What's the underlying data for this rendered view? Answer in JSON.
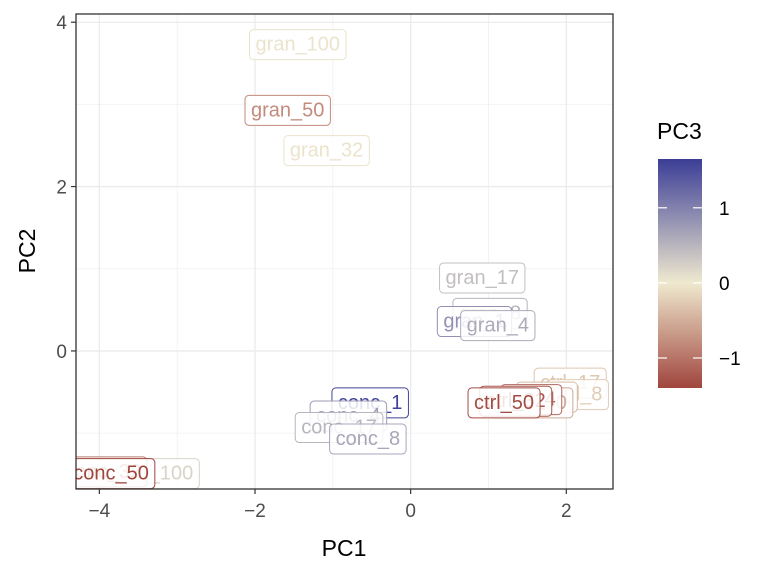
{
  "chart_data": {
    "type": "scatter",
    "title": "",
    "xlabel": "PC1",
    "ylabel": "PC2",
    "xlim": [
      -4.3,
      2.6
    ],
    "ylim": [
      -1.68,
      4.1
    ],
    "xticks": [
      -4,
      -2,
      0,
      2
    ],
    "yticks": [
      0,
      2,
      4
    ],
    "grid": true,
    "legend": {
      "title": "PC3",
      "position": "right",
      "range": [
        -1.4,
        1.65
      ],
      "ticks": [
        -1,
        0,
        1
      ],
      "colors": [
        "#a0453d",
        "#efe9cf",
        "#3b3d96"
      ]
    },
    "points": [
      {
        "label": "gran_100",
        "x": -1.45,
        "y": 3.74,
        "pc3": 0.05
      },
      {
        "label": "gran_50",
        "x": -1.58,
        "y": 2.94,
        "pc3": -0.8
      },
      {
        "label": "gran_32",
        "x": -1.08,
        "y": 2.45,
        "pc3": -0.05
      },
      {
        "label": "gran_17",
        "x": 0.92,
        "y": 0.9,
        "pc3": 0.4
      },
      {
        "label": "gran_8",
        "x": 1.02,
        "y": 0.47,
        "pc3": 0.5
      },
      {
        "label": "gran_1",
        "x": 0.82,
        "y": 0.37,
        "pc3": 0.85
      },
      {
        "label": "gran_4",
        "x": 1.12,
        "y": 0.32,
        "pc3": 0.6
      },
      {
        "label": "ctrl_17",
        "x": 2.05,
        "y": -0.38,
        "pc3": -0.3
      },
      {
        "label": "ctrl_8",
        "x": 2.15,
        "y": -0.52,
        "pc3": -0.25
      },
      {
        "label": "ctrl_1",
        "x": 1.75,
        "y": -0.55,
        "pc3": -0.4
      },
      {
        "label": "ctrl_100",
        "x": 1.55,
        "y": -0.62,
        "pc3": -0.55
      },
      {
        "label": "ctrl_4",
        "x": 1.55,
        "y": -0.58,
        "pc3": -1.1
      },
      {
        "label": "ctrl_32",
        "x": 1.35,
        "y": -0.6,
        "pc3": -1.25
      },
      {
        "label": "ctrl_50",
        "x": 1.2,
        "y": -0.62,
        "pc3": -1.35
      },
      {
        "label": "conc_1",
        "x": -0.52,
        "y": -0.62,
        "pc3": 1.6
      },
      {
        "label": "conc_4",
        "x": -0.8,
        "y": -0.78,
        "pc3": 0.75
      },
      {
        "label": "conc_17",
        "x": -0.92,
        "y": -0.92,
        "pc3": 0.5
      },
      {
        "label": "conc_8",
        "x": -0.55,
        "y": -1.06,
        "pc3": 0.65
      },
      {
        "label": "conc_100",
        "x": -3.35,
        "y": -1.48,
        "pc3": 0.2
      },
      {
        "label": "conc_32",
        "x": -3.95,
        "y": -1.46,
        "pc3": -0.95
      },
      {
        "label": "conc_50",
        "x": -3.85,
        "y": -1.48,
        "pc3": -1.4
      }
    ]
  }
}
